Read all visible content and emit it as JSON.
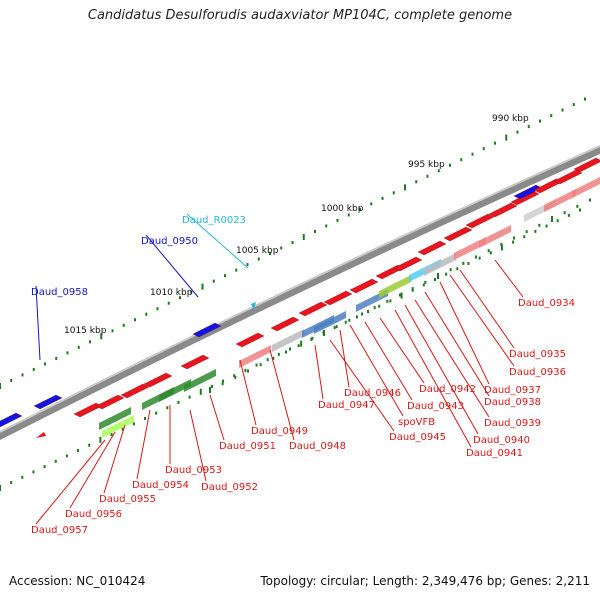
{
  "title": "Candidatus Desulforudis audaxviator MP104C, complete genome",
  "footer": {
    "accession": "Accession: NC_010424",
    "summary": "Topology: circular; Length: 2,349,476 bp; Genes: 2,211"
  },
  "colors": {
    "background": "#ffffff",
    "backbone": "#8a8a8a",
    "tick": "#1e7a1e",
    "red_gene": "#e8141e",
    "blue_gene": "#1414e0",
    "cyan_label": "#27b7d6",
    "red_label": "#d81818",
    "blue_label": "#1515c8"
  },
  "scale_labels": [
    "990 kbp",
    "995 kbp",
    "1000 kbp",
    "1005 kbp",
    "1010 kbp",
    "1015 kbp"
  ],
  "gene_labels": [
    {
      "text": "Daud_R0023",
      "color": "cyan"
    },
    {
      "text": "Daud_0950",
      "color": "blue"
    },
    {
      "text": "Daud_0958",
      "color": "blue"
    },
    {
      "text": "Daud_0934",
      "color": "red"
    },
    {
      "text": "Daud_0935",
      "color": "red"
    },
    {
      "text": "Daud_0936",
      "color": "red"
    },
    {
      "text": "Daud_0937",
      "color": "red"
    },
    {
      "text": "Daud_0938",
      "color": "red"
    },
    {
      "text": "Daud_0939",
      "color": "red"
    },
    {
      "text": "Daud_0940",
      "color": "red"
    },
    {
      "text": "Daud_0941",
      "color": "red"
    },
    {
      "text": "Daud_0942",
      "color": "red"
    },
    {
      "text": "Daud_0943",
      "color": "red"
    },
    {
      "text": "Daud_0946",
      "color": "red"
    },
    {
      "text": "Daud_0947",
      "color": "red"
    },
    {
      "text": "spoVFB",
      "color": "red"
    },
    {
      "text": "Daud_0945",
      "color": "red"
    },
    {
      "text": "Daud_0949",
      "color": "red"
    },
    {
      "text": "Daud_0948",
      "color": "red"
    },
    {
      "text": "Daud_0951",
      "color": "red"
    },
    {
      "text": "Daud_0952",
      "color": "red"
    },
    {
      "text": "Daud_0953",
      "color": "red"
    },
    {
      "text": "Daud_0954",
      "color": "red"
    },
    {
      "text": "Daud_0955",
      "color": "red"
    },
    {
      "text": "Daud_0956",
      "color": "red"
    },
    {
      "text": "Daud_0957",
      "color": "red"
    }
  ]
}
